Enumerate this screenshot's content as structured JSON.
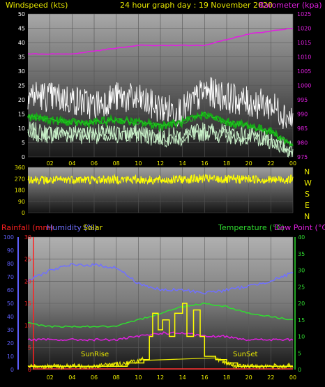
{
  "colors": {
    "wind_avg": "#22cc22",
    "wind_gust": "#ffffff",
    "wind_light": "#c8f0c8",
    "baro": "#e020e0",
    "dir": "#ffff00",
    "rain": "#ff3030",
    "humidity": "#7070ff",
    "solar": "#ffff00",
    "temp": "#30dd30",
    "dew": "#e020e0",
    "header_yellow": "#e8e800",
    "left_axis_blue": "#6060ff",
    "left_axis_red": "#ff2020",
    "right_axis_green": "#30dd30"
  },
  "header": {
    "windspeed": "Windspeed (kts)",
    "title": "24 hour graph day : 19 November 2020",
    "barometer": "Barometer (kpa)"
  },
  "legend3": {
    "rainfall": "Rainfall (mm)",
    "humidity": "Humidity (%)",
    "solar": "Solar",
    "temperature": "Temperature (°C)",
    "dewpoint": "Dew Point (°C)"
  },
  "annotations": {
    "sunrise": "SunRise",
    "sunset": "SunSet"
  },
  "direction_labels": [
    "N",
    "W",
    "S",
    "E",
    "N"
  ],
  "chart_data": [
    {
      "type": "line",
      "title": "24 hour graph day : 19 November 2020",
      "x_ticks": [
        "02",
        "04",
        "06",
        "08",
        "10",
        "12",
        "14",
        "16",
        "18",
        "20",
        "22",
        "00"
      ],
      "ylabel": "Windspeed (kts)",
      "ylim": [
        0,
        50
      ],
      "y_ticks": [
        0,
        5,
        10,
        15,
        20,
        25,
        30,
        35,
        40,
        45,
        50
      ],
      "y2label": "Barometer (kpa)",
      "y2lim": [
        975,
        1025
      ],
      "y2_ticks": [
        975,
        980,
        985,
        990,
        995,
        1000,
        1005,
        1010,
        1015,
        1020,
        1025
      ],
      "series": [
        {
          "name": "Barometer (kpa)",
          "axis": "right",
          "x": [
            0,
            2,
            4,
            6,
            8,
            10,
            12,
            14,
            16,
            18,
            20,
            22,
            24
          ],
          "values": [
            1011,
            1011,
            1011,
            1012,
            1013,
            1014,
            1014,
            1014,
            1014,
            1016,
            1018,
            1019,
            1020
          ]
        },
        {
          "name": "wind gust",
          "axis": "left",
          "x": [
            0,
            2,
            4,
            6,
            8,
            10,
            12,
            14,
            16,
            18,
            20,
            22,
            24
          ],
          "values": [
            22,
            21,
            20,
            18,
            21,
            20,
            17,
            16,
            23,
            21,
            19,
            18,
            13
          ]
        },
        {
          "name": "wind average",
          "axis": "left",
          "x": [
            0,
            2,
            4,
            6,
            8,
            10,
            12,
            14,
            16,
            18,
            20,
            22,
            24
          ],
          "values": [
            14,
            13,
            12,
            12,
            13,
            12,
            11,
            12,
            15,
            12,
            11,
            9,
            4
          ]
        },
        {
          "name": "wind lull",
          "axis": "left",
          "x": [
            0,
            2,
            4,
            6,
            8,
            10,
            12,
            14,
            16,
            18,
            20,
            22,
            24
          ],
          "values": [
            9,
            8,
            8,
            8,
            8,
            8,
            7,
            7,
            9,
            8,
            7,
            6,
            2
          ]
        }
      ]
    },
    {
      "type": "line",
      "ylim": [
        0,
        360
      ],
      "y_ticks": [
        0,
        90,
        180,
        270,
        360
      ],
      "series": [
        {
          "name": "wind direction",
          "x": [
            0,
            2,
            4,
            6,
            8,
            10,
            12,
            14,
            16,
            18,
            20,
            22,
            24
          ],
          "values": [
            270,
            255,
            265,
            260,
            265,
            262,
            258,
            265,
            270,
            262,
            268,
            260,
            265
          ]
        }
      ]
    },
    {
      "type": "line",
      "x_ticks": [
        "02",
        "04",
        "06",
        "08",
        "10",
        "12",
        "14",
        "16",
        "18",
        "20",
        "22",
        "00"
      ],
      "ylabel": "Rainfall (mm) / Humidity (%)",
      "ylim_humidity": [
        0,
        100
      ],
      "y_ticks_humidity": [
        0,
        10,
        20,
        30,
        40,
        50,
        60,
        70,
        80,
        90,
        100
      ],
      "ylim_rain": [
        0,
        30
      ],
      "y_ticks_rain": [
        0,
        5,
        10,
        15,
        20,
        25,
        30
      ],
      "y2label": "Temperature (°C) / Dew Point (°C)",
      "y2lim": [
        0,
        40
      ],
      "y2_ticks": [
        0,
        5,
        10,
        15,
        20,
        25,
        30,
        35,
        40
      ],
      "series": [
        {
          "name": "Humidity (%)",
          "axis": "humidity",
          "x": [
            0,
            2,
            4,
            6,
            8,
            10,
            12,
            14,
            16,
            18,
            20,
            22,
            24
          ],
          "values": [
            67,
            75,
            79,
            79,
            77,
            65,
            60,
            60,
            58,
            60,
            63,
            67,
            73
          ]
        },
        {
          "name": "Temperature (°C)",
          "axis": "right",
          "x": [
            0,
            2,
            4,
            6,
            8,
            10,
            12,
            14,
            16,
            18,
            20,
            22,
            24
          ],
          "values": [
            14,
            13,
            13,
            13,
            13,
            15,
            17,
            19,
            20,
            19,
            17,
            16,
            15
          ]
        },
        {
          "name": "Dew Point (°C)",
          "axis": "right",
          "x": [
            0,
            2,
            4,
            6,
            8,
            10,
            12,
            14,
            16,
            18,
            20,
            22,
            24
          ],
          "values": [
            9,
            9,
            9,
            9,
            9,
            10,
            11,
            11,
            10,
            10,
            9,
            9,
            9
          ]
        },
        {
          "name": "Rainfall (mm)",
          "axis": "rain",
          "x": [
            0,
            24
          ],
          "values": [
            0,
            0
          ]
        },
        {
          "name": "Solar",
          "axis": "right",
          "x": [
            0,
            3,
            6,
            9,
            10.5,
            11,
            11.3,
            11.8,
            12.2,
            12.8,
            13.3,
            14,
            14.4,
            15,
            15.6,
            16,
            17,
            18,
            19,
            20,
            24
          ],
          "values": [
            1,
            1,
            1,
            2,
            3,
            10,
            17,
            12,
            15,
            10,
            17,
            20,
            10,
            18,
            10,
            4,
            3,
            2,
            1,
            1,
            1
          ]
        }
      ]
    }
  ]
}
